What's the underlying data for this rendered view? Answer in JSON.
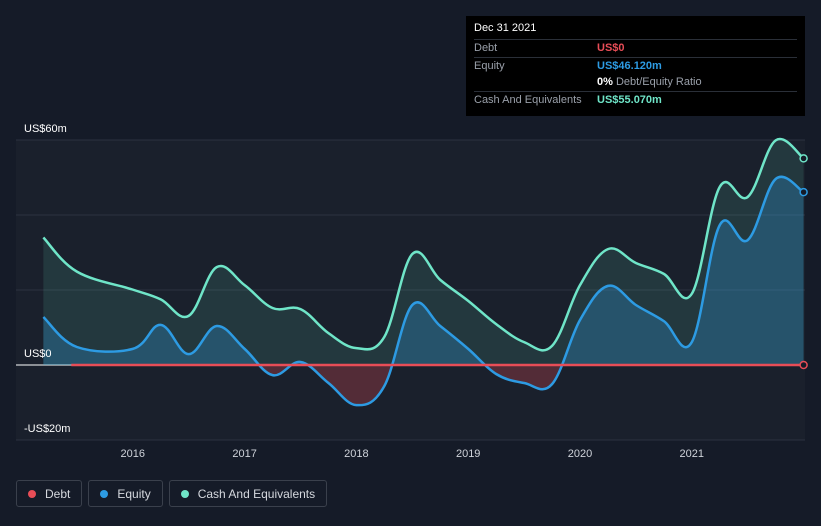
{
  "tooltip": {
    "date": "Dec 31 2021",
    "rows": [
      {
        "label": "Debt",
        "value": "US$0",
        "color": "#e84d57"
      },
      {
        "label": "Equity",
        "value": "US$46.120m",
        "color": "#2d9be3"
      },
      {
        "label": "Cash And Equivalents",
        "value": "US$55.070m",
        "color": "#6fe5c8"
      }
    ],
    "ratio_value": "0%",
    "ratio_label": "Debt/Equity Ratio"
  },
  "legend": [
    {
      "label": "Debt",
      "color": "#e84d57"
    },
    {
      "label": "Equity",
      "color": "#2d9be3"
    },
    {
      "label": "Cash And Equivalents",
      "color": "#6fe5c8"
    }
  ],
  "chart_data": {
    "type": "line",
    "ylim": [
      -20,
      60
    ],
    "y_tick_labels": [
      "US$60m",
      "US$0",
      "-US$20m"
    ],
    "x_tick_labels": [
      "2016",
      "2017",
      "2018",
      "2019",
      "2020",
      "2021"
    ],
    "series": [
      {
        "name": "Cash And Equivalents",
        "color": "#6fe5c8",
        "points": [
          [
            2015.2,
            34.0
          ],
          [
            2015.5,
            24.9
          ],
          [
            2016.0,
            20.1
          ],
          [
            2016.25,
            17.5
          ],
          [
            2016.5,
            13.1
          ],
          [
            2016.75,
            26.1
          ],
          [
            2017.0,
            21.3
          ],
          [
            2017.25,
            15.2
          ],
          [
            2017.5,
            14.9
          ],
          [
            2017.75,
            8.5
          ],
          [
            2018.0,
            4.5
          ],
          [
            2018.25,
            7.5
          ],
          [
            2018.5,
            29.6
          ],
          [
            2018.75,
            22.7
          ],
          [
            2019.0,
            17.1
          ],
          [
            2019.25,
            10.9
          ],
          [
            2019.5,
            6.1
          ],
          [
            2019.75,
            5.1
          ],
          [
            2020.0,
            21.3
          ],
          [
            2020.25,
            30.9
          ],
          [
            2020.5,
            27.2
          ],
          [
            2020.75,
            24.3
          ],
          [
            2021.0,
            19.0
          ],
          [
            2021.25,
            47.5
          ],
          [
            2021.5,
            44.8
          ],
          [
            2021.75,
            59.9
          ],
          [
            2022.0,
            55.1
          ]
        ]
      },
      {
        "name": "Equity",
        "color": "#2d9be3",
        "points": [
          [
            2015.2,
            12.8
          ],
          [
            2015.5,
            4.8
          ],
          [
            2016.0,
            4.3
          ],
          [
            2016.25,
            10.7
          ],
          [
            2016.5,
            2.9
          ],
          [
            2016.75,
            10.4
          ],
          [
            2017.0,
            4.3
          ],
          [
            2017.25,
            -2.7
          ],
          [
            2017.5,
            0.8
          ],
          [
            2017.75,
            -4.8
          ],
          [
            2018.0,
            -10.7
          ],
          [
            2018.25,
            -5.6
          ],
          [
            2018.5,
            16.0
          ],
          [
            2018.75,
            10.4
          ],
          [
            2019.0,
            4.3
          ],
          [
            2019.25,
            -2.4
          ],
          [
            2019.5,
            -4.8
          ],
          [
            2019.75,
            -5.1
          ],
          [
            2020.0,
            12.0
          ],
          [
            2020.25,
            21.1
          ],
          [
            2020.5,
            16.0
          ],
          [
            2020.75,
            11.7
          ],
          [
            2021.0,
            6.1
          ],
          [
            2021.25,
            37.3
          ],
          [
            2021.5,
            33.3
          ],
          [
            2021.75,
            49.6
          ],
          [
            2022.0,
            46.1
          ]
        ]
      },
      {
        "name": "Debt",
        "color": "#e84d57",
        "points": [
          [
            2015.45,
            0
          ],
          [
            2022.0,
            0
          ]
        ]
      }
    ]
  }
}
